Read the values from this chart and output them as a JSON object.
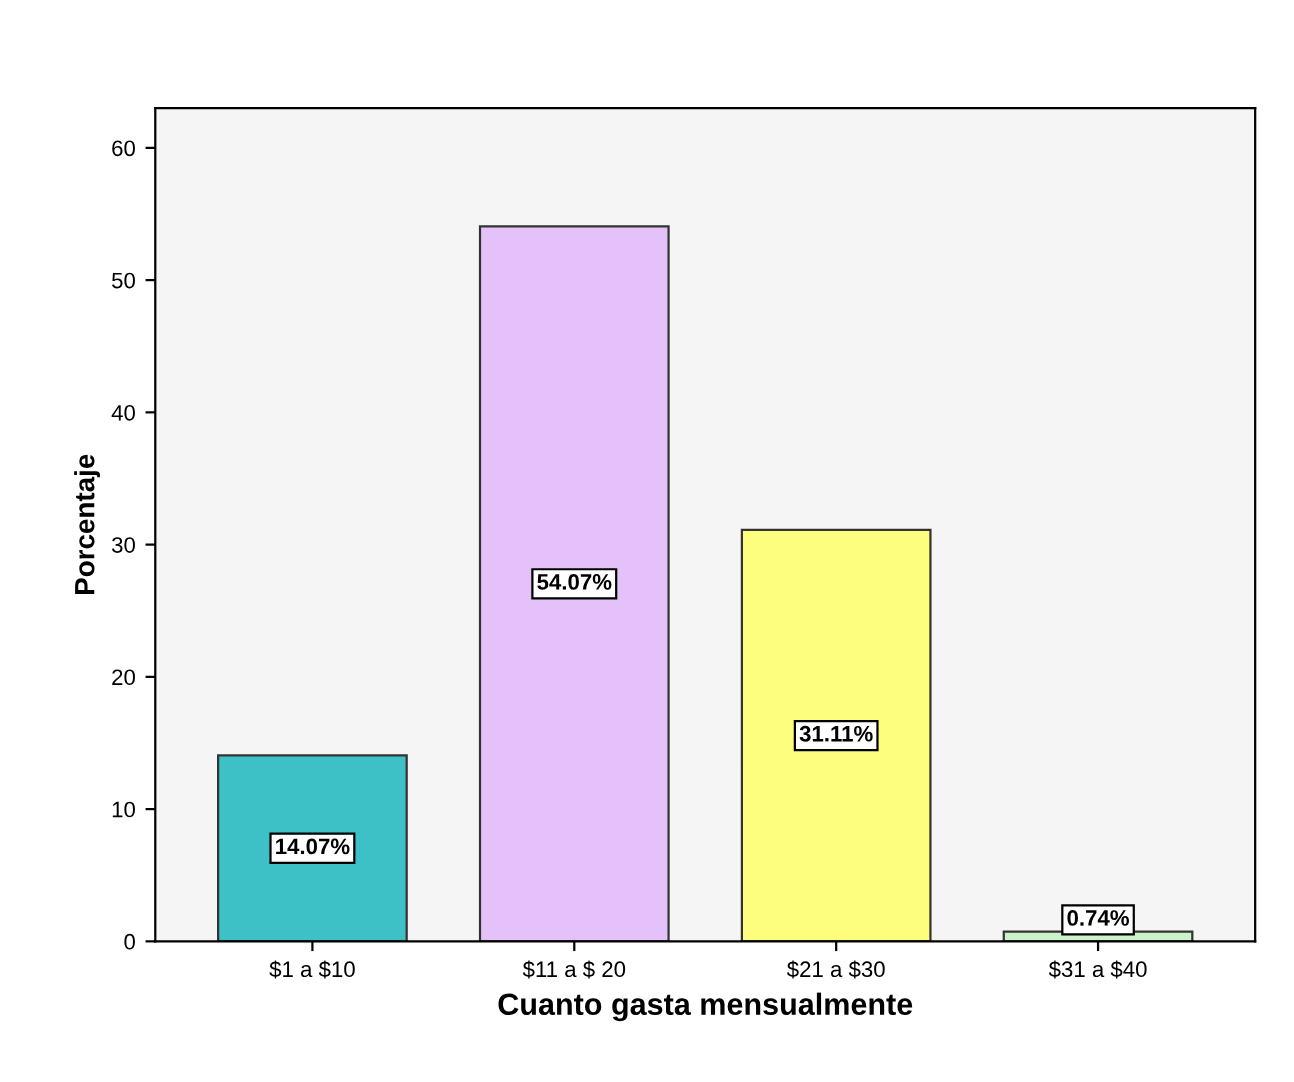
{
  "chart_data": {
    "type": "bar",
    "xlabel": "Cuanto gasta mensualmente",
    "ylabel": "Porcentaje",
    "categories": [
      "$1 a $10",
      "$11 a $ 20",
      "$21 a $30",
      "$31 a $40"
    ],
    "values": [
      14.07,
      54.07,
      31.11,
      0.74
    ],
    "colors": [
      "#3ec1c6",
      "#e4c1f9",
      "#fdfd7e",
      "#c9f3c9"
    ],
    "value_labels": [
      "14.07%",
      "54.07%",
      "31.11%",
      "0.74%"
    ],
    "ylim": [
      0,
      63
    ],
    "yticks": [
      0,
      10,
      20,
      30,
      40,
      50,
      60
    ],
    "grid": false,
    "legend": false
  }
}
